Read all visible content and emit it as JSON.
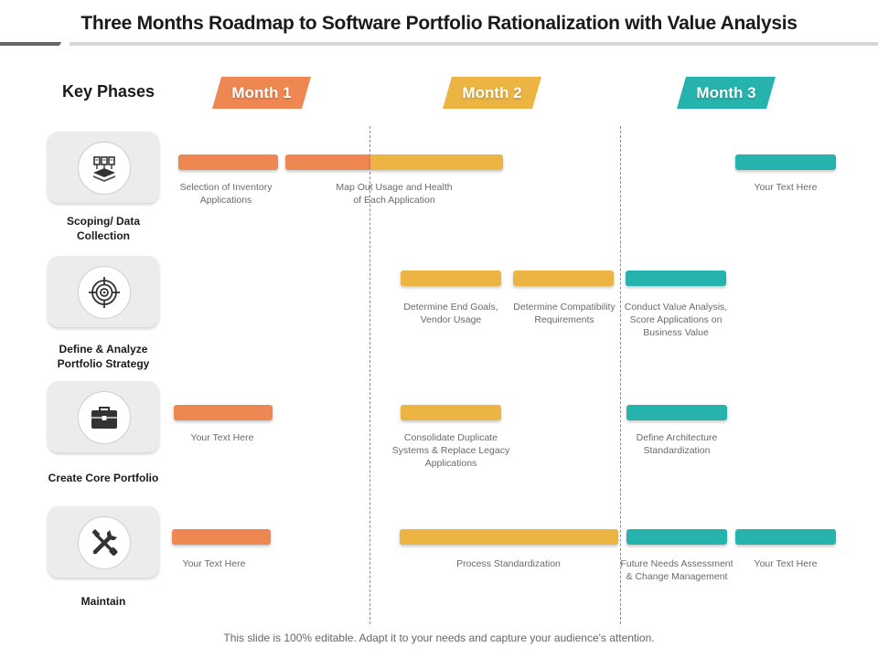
{
  "title": "Three Months Roadmap to Software Portfolio Rationalization with Value Analysis",
  "key_phases_label": "Key Phases",
  "months": [
    "Month 1",
    "Month 2",
    "Month 3"
  ],
  "colors": {
    "month1": "#ee8751",
    "month2": "#ebb443",
    "month3": "#26b3ae"
  },
  "phases": [
    {
      "label": "Scoping/ Data Collection",
      "icon": "server-network-icon"
    },
    {
      "label": "Define & Analyze Portfolio Strategy",
      "icon": "target-icon"
    },
    {
      "label": "Create Core Portfolio",
      "icon": "briefcase-icon"
    },
    {
      "label": "Maintain",
      "icon": "tools-icon"
    }
  ],
  "tasks": {
    "t1": "Selection of Inventory Applications",
    "t2": "Map Out Usage and Health of Each Application",
    "t3": "Your Text Here",
    "t4": "Determine End Goals, Vendor Usage",
    "t5": "Determine Compatibility Requirements",
    "t6": "Conduct Value Analysis, Score Applications on Business Value",
    "t7": "Your Text Here",
    "t8": "Consolidate Duplicate Systems & Replace Legacy Applications",
    "t9": "Define Architecture Standardization",
    "t10": "Your Text Here",
    "t11": "Process Standardization",
    "t12": "Future Needs Assessment & Change Management",
    "t13": "Your Text Here"
  },
  "footer": "This slide is 100% editable. Adapt it to your needs and capture your audience's attention."
}
